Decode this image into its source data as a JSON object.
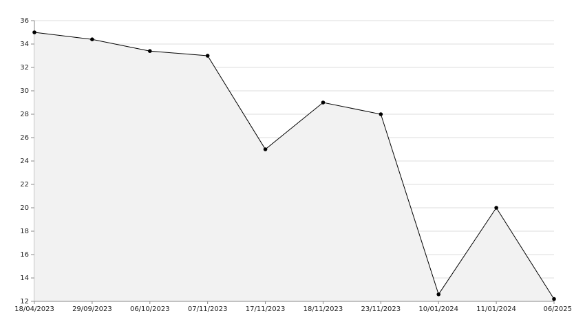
{
  "chart_data": {
    "type": "area",
    "categories": [
      "18/04/2023",
      "29/09/2023",
      "06/10/2023",
      "07/11/2023",
      "17/11/2023",
      "18/11/2023",
      "23/11/2023",
      "10/01/2024",
      "11/01/2024",
      "06/2025"
    ],
    "values": [
      35,
      34.4,
      33.4,
      33,
      25,
      29,
      28,
      12.6,
      20,
      12.2
    ],
    "color": "#000000",
    "fill": "#f2f2f2",
    "ylim": [
      12,
      36
    ],
    "yticks": [
      12,
      14,
      16,
      18,
      20,
      22,
      24,
      26,
      28,
      30,
      32,
      34,
      36
    ],
    "grid": true
  }
}
